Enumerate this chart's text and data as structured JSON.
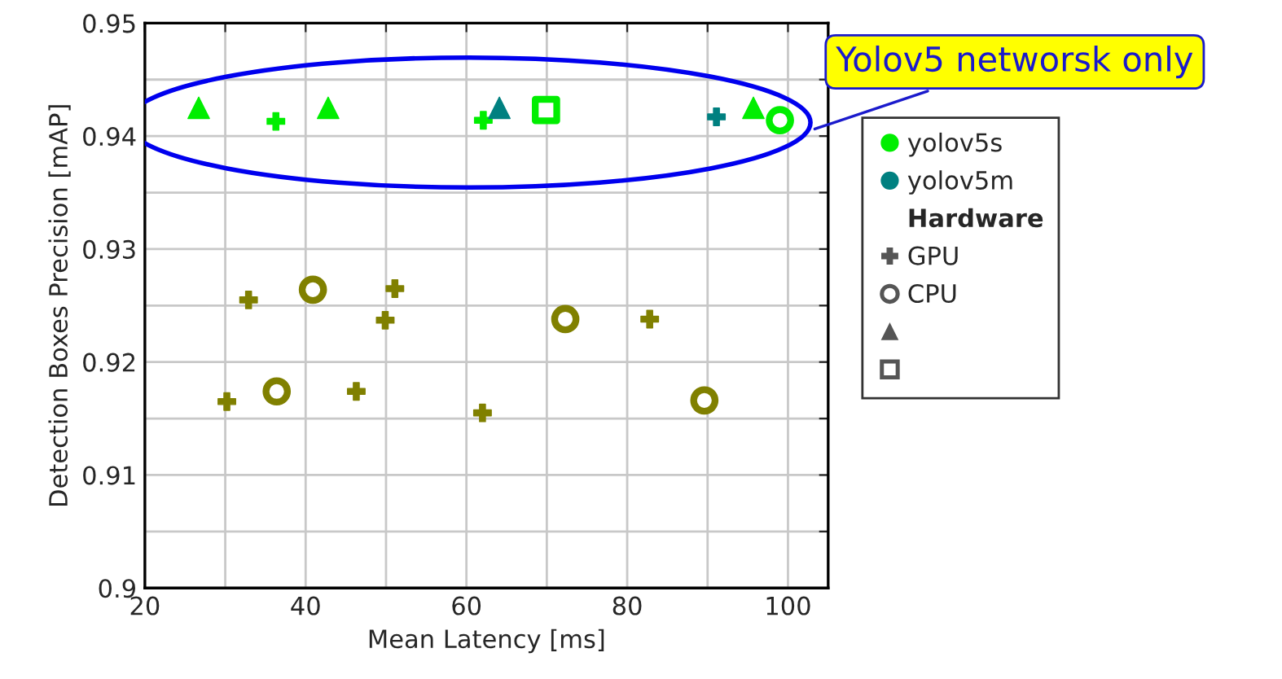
{
  "chart_data": {
    "type": "scatter",
    "xlabel": "Mean Latency [ms]",
    "ylabel": "Detection Boxes Precision [mAP]",
    "xlim": [
      20,
      105
    ],
    "xticks": [
      20,
      {
        "value": 30,
        "label": null
      },
      40,
      {
        "value": 50,
        "label": null
      },
      60,
      {
        "value": 70,
        "label": null
      },
      80,
      {
        "value": 90,
        "label": null
      },
      100
    ],
    "ylim": [
      0.9,
      0.95
    ],
    "yticks": [
      0.9,
      {
        "value": 0.905,
        "label": null
      },
      0.91,
      {
        "value": 0.915,
        "label": null
      },
      0.92,
      {
        "value": 0.925,
        "label": null
      },
      0.93,
      {
        "value": 0.935,
        "label": null
      },
      0.94,
      {
        "value": 0.945,
        "label": null
      },
      0.95
    ],
    "grid": true,
    "legend_title": "Hardware",
    "annotations": [
      "Yolov5 networsk only",
      "yolov5s",
      "yolov5m",
      "GPU",
      "CPU"
    ],
    "series": [
      {
        "color": "#808000",
        "marker": "cross",
        "x": [
          32.9,
          51.1,
          49.9,
          82.8,
          30.2,
          46.3,
          62.0
        ],
        "values": [
          0.9255,
          0.9265,
          0.9237,
          0.9238,
          0.9165,
          0.9174,
          0.9155
        ]
      },
      {
        "color": "#808000",
        "marker": "circle",
        "x": [
          40.9,
          72.3,
          36.4,
          89.6
        ],
        "values": [
          0.9264,
          0.9238,
          0.9174,
          0.9166
        ]
      },
      {
        "color": "#00ee00",
        "marker": "cross",
        "x": [
          36.3,
          62.1
        ],
        "values": [
          0.9413,
          0.9414
        ]
      },
      {
        "color": "#00ee00",
        "marker": "triangle",
        "x": [
          26.7,
          42.8,
          95.7
        ],
        "values": [
          0.9425,
          0.9425,
          0.9425
        ]
      },
      {
        "color": "#00ee00",
        "marker": "square",
        "x": [
          69.9
        ],
        "values": [
          0.9423
        ]
      },
      {
        "color": "#00ee00",
        "marker": "circle",
        "x": [
          99.0
        ],
        "values": [
          0.9414
        ]
      },
      {
        "color": "#008080",
        "marker": "triangle",
        "x": [
          64.1
        ],
        "values": [
          0.9425
        ]
      },
      {
        "color": "#008080",
        "marker": "cross",
        "x": [
          91.1
        ],
        "values": [
          0.9417
        ]
      }
    ]
  }
}
